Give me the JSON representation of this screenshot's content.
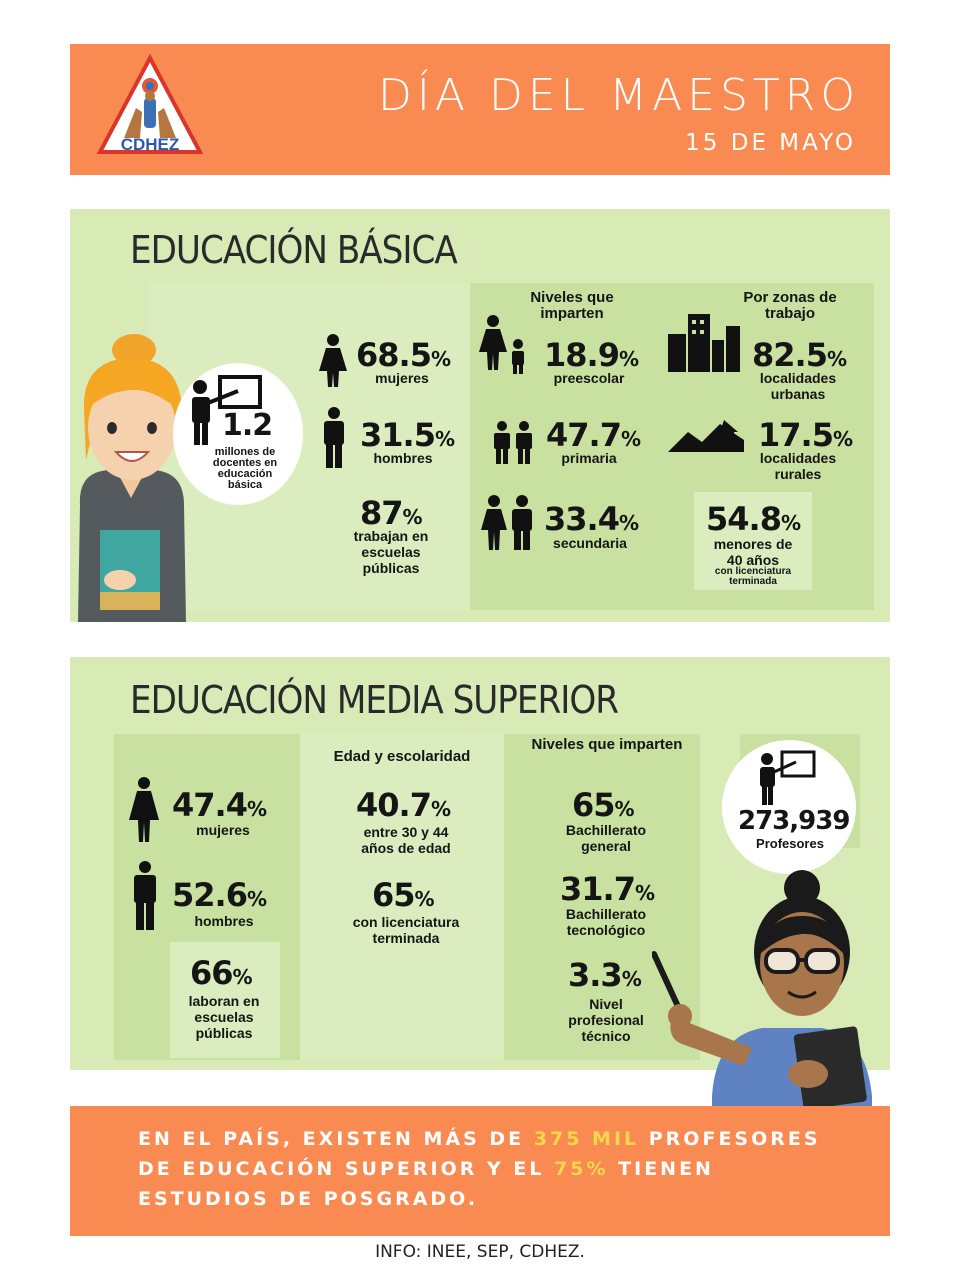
{
  "header": {
    "logo_text": "CDHEZ",
    "title": "DÍA DEL MAESTRO",
    "date": "15 DE MAYO"
  },
  "basica": {
    "title": "EDUCACIÓN BÁSICA",
    "docentes": {
      "value": "1.2",
      "label": "millones de docentes en educación básica"
    },
    "mujeres": {
      "value": "68.5",
      "unit": "%",
      "label": "mujeres"
    },
    "hombres": {
      "value": "31.5",
      "unit": "%",
      "label": "hombres"
    },
    "publicas": {
      "value": "87",
      "unit": "%",
      "label": "trabajan en escuelas públicas"
    },
    "niveles": {
      "heading": "Niveles que imparten",
      "items": [
        {
          "value": "18.9",
          "unit": "%",
          "label": "preescolar"
        },
        {
          "value": "47.7",
          "unit": "%",
          "label": "primaria"
        },
        {
          "value": "33.4",
          "unit": "%",
          "label": "secundaria"
        }
      ]
    },
    "zonas": {
      "heading": "Por zonas de trabajo",
      "items": [
        {
          "value": "82.5",
          "unit": "%",
          "label": "localidades urbanas"
        },
        {
          "value": "17.5",
          "unit": "%",
          "label": "localidades rurales"
        }
      ]
    },
    "menores": {
      "value": "54.8",
      "unit": "%",
      "label_main": "menores de 40 años",
      "label_small": "con licenciatura terminada"
    }
  },
  "media": {
    "title": "EDUCACIÓN MEDIA SUPERIOR",
    "mujeres": {
      "value": "47.4",
      "unit": "%",
      "label": "mujeres"
    },
    "hombres": {
      "value": "52.6",
      "unit": "%",
      "label": "hombres"
    },
    "laboran": {
      "value": "66",
      "unit": "%",
      "label": "laboran en escuelas públicas"
    },
    "edad": {
      "heading": "Edad y escolaridad",
      "items": [
        {
          "value": "40.7",
          "unit": "%",
          "label": "entre 30 y 44 años de edad"
        },
        {
          "value": "65",
          "unit": "%",
          "label": "con licenciatura terminada"
        }
      ]
    },
    "niveles": {
      "heading": "Niveles que imparten",
      "items": [
        {
          "value": "65",
          "unit": "%",
          "label": "Bachillerato general"
        },
        {
          "value": "31.7",
          "unit": "%",
          "label": "Bachillerato tecnológico"
        },
        {
          "value": "3.3",
          "unit": "%",
          "label": "Nivel profesional técnico"
        }
      ]
    },
    "profesores": {
      "value": "273,939",
      "label": "Profesores"
    }
  },
  "footer": {
    "part1": "EN EL PAÍS, EXISTEN MÁS DE ",
    "hl1": "375 MIL",
    "part2": " PROFESORES DE EDUCACIÓN SUPERIOR Y EL ",
    "hl2": "75%",
    "part3": " TIENEN ESTUDIOS DE POSGRADO.",
    "source": "INFO: INEE, SEP, CDHEZ."
  },
  "colors": {
    "orange": "#f98b52",
    "green": "#d8ebb7",
    "highlight": "#f5d84a"
  }
}
